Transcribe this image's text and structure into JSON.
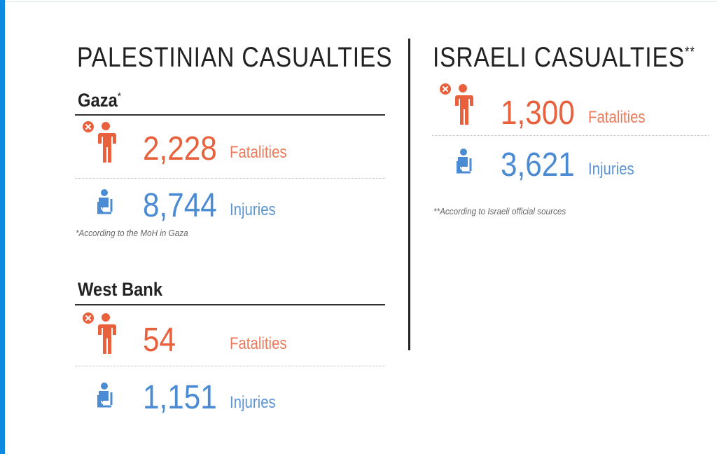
{
  "colors": {
    "fatalities": "#e8603c",
    "injuries": "#4a8bd3",
    "accent_bar": "#0d8be0"
  },
  "icons": {
    "fatality": "person-with-x-icon",
    "injury": "injured-person-icon"
  },
  "palestinian": {
    "title": "PALESTINIAN CASUALTIES",
    "gaza": {
      "name": "Gaza",
      "mark": "*",
      "fatalities": "2,228",
      "fatalities_label": "Fatalities",
      "injuries": "8,744",
      "injuries_label": "Injuries",
      "note": "*According to the MoH in Gaza"
    },
    "west_bank": {
      "name": "West Bank",
      "fatalities": "54",
      "fatalities_label": "Fatalities",
      "injuries": "1,151",
      "injuries_label": "Injuries"
    }
  },
  "israeli": {
    "title": "ISRAELI CASUALTIES",
    "mark": "**",
    "fatalities": "1,300",
    "fatalities_label": "Fatalities",
    "injuries": "3,621",
    "injuries_label": "Injuries",
    "note": "**According to Israeli official sources"
  }
}
